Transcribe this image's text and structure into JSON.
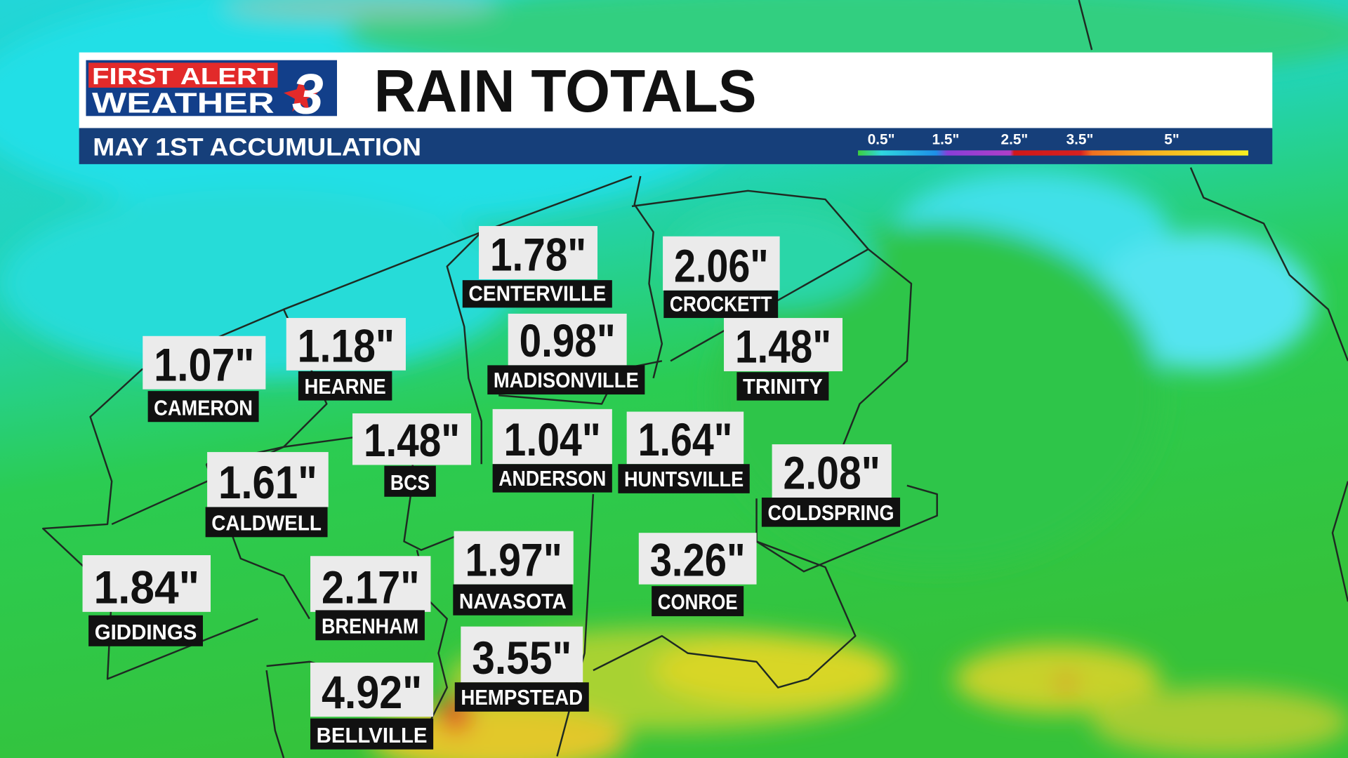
{
  "header": {
    "logo": {
      "line1": "FIRST ALERT",
      "line2": "WEATHER",
      "channel": "3"
    },
    "title": "RAIN TOTALS",
    "subtitle": "MAY 1ST ACCUMULATION",
    "legend": [
      "0.5\"",
      "1.5\"",
      "2.5\"",
      "3.5\"",
      "5\""
    ]
  },
  "locations": [
    {
      "name": "CENTERVILLE",
      "total": "1.78\""
    },
    {
      "name": "CROCKETT",
      "total": "2.06\""
    },
    {
      "name": "CAMERON",
      "total": "1.07\""
    },
    {
      "name": "HEARNE",
      "total": "1.18\""
    },
    {
      "name": "MADISONVILLE",
      "total": "0.98\""
    },
    {
      "name": "TRINITY",
      "total": "1.48\""
    },
    {
      "name": "BCS",
      "total": "1.48\""
    },
    {
      "name": "ANDERSON",
      "total": "1.04\""
    },
    {
      "name": "HUNTSVILLE",
      "total": "1.64\""
    },
    {
      "name": "COLDSPRING",
      "total": "2.08\""
    },
    {
      "name": "CALDWELL",
      "total": "1.61\""
    },
    {
      "name": "GIDDINGS",
      "total": "1.84\""
    },
    {
      "name": "BRENHAM",
      "total": "2.17\""
    },
    {
      "name": "NAVASOTA",
      "total": "1.97\""
    },
    {
      "name": "CONROE",
      "total": "3.26\""
    },
    {
      "name": "HEMPSTEAD",
      "total": "3.55\""
    },
    {
      "name": "BELLVILLE",
      "total": "4.92\""
    }
  ]
}
